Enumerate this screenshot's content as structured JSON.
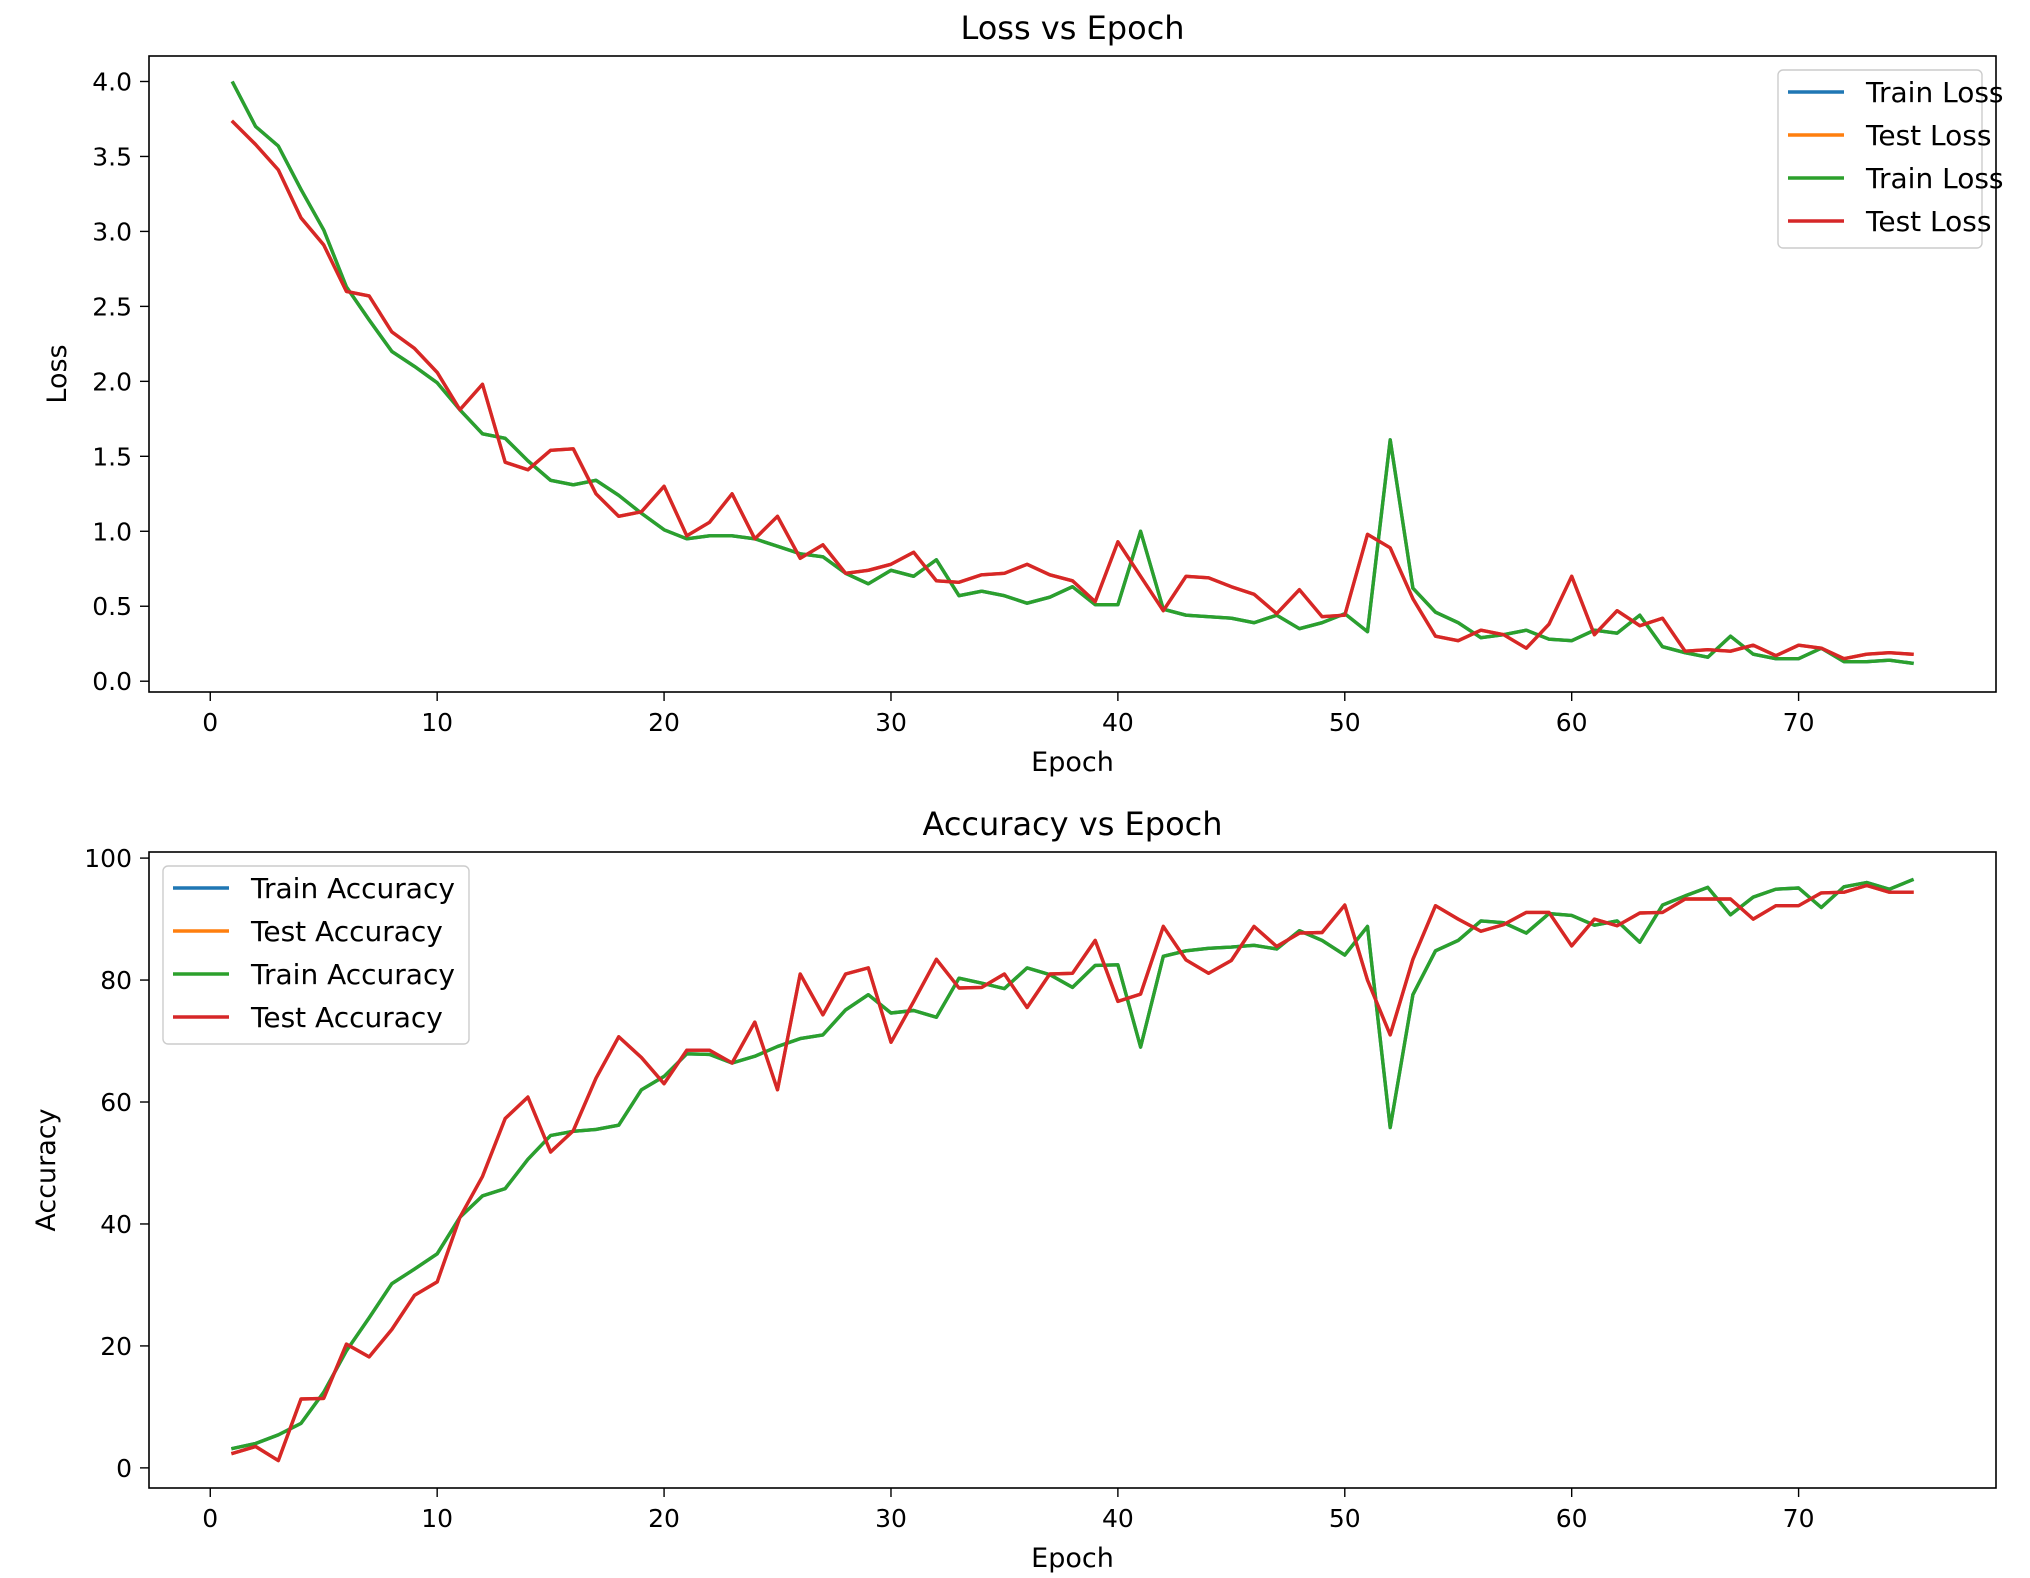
{
  "chart_data": [
    {
      "type": "line",
      "title": "Loss vs Epoch",
      "xlabel": "Epoch",
      "ylabel": "Loss",
      "xlim": [
        -2.7,
        78.7
      ],
      "ylim": [
        -0.072,
        4.17
      ],
      "xticks": [
        0,
        10,
        20,
        30,
        40,
        50,
        60,
        70
      ],
      "yticks": [
        0.0,
        0.5,
        1.0,
        1.5,
        2.0,
        2.5,
        3.0,
        3.5,
        4.0
      ],
      "ytick_labels": [
        "0.0",
        "0.5",
        "1.0",
        "1.5",
        "2.0",
        "2.5",
        "3.0",
        "3.5",
        "4.0"
      ],
      "grid": false,
      "legend_position": "upper right",
      "x": [
        1,
        2,
        3,
        4,
        5,
        6,
        7,
        8,
        9,
        10,
        11,
        12,
        13,
        14,
        15,
        16,
        17,
        18,
        19,
        20,
        21,
        22,
        23,
        24,
        25,
        26,
        27,
        28,
        29,
        30,
        31,
        32,
        33,
        34,
        35,
        36,
        37,
        38,
        39,
        40,
        41,
        42,
        43,
        44,
        45,
        46,
        47,
        48,
        49,
        50,
        51,
        52,
        53,
        54,
        55,
        56,
        57,
        58,
        59,
        60,
        61,
        62,
        63,
        64,
        65,
        66,
        67,
        68,
        69,
        70,
        71,
        72,
        73,
        74,
        75
      ],
      "series": [
        {
          "name": "Train Loss",
          "color": "#1f77b4",
          "values": [
            3.99,
            3.7,
            3.57,
            3.28,
            3.01,
            2.63,
            2.41,
            2.2,
            2.1,
            1.99,
            1.81,
            1.65,
            1.62,
            1.47,
            1.34,
            1.31,
            1.34,
            1.24,
            1.12,
            1.01,
            0.95,
            0.97,
            0.97,
            0.95,
            0.9,
            0.85,
            0.83,
            0.72,
            0.65,
            0.74,
            0.7,
            0.81,
            0.57,
            0.6,
            0.57,
            0.52,
            0.56,
            0.63,
            0.51,
            0.51,
            1.0,
            0.48,
            0.44,
            0.43,
            0.42,
            0.39,
            0.44,
            0.35,
            0.39,
            0.45,
            0.33,
            1.61,
            0.62,
            0.46,
            0.39,
            0.29,
            0.31,
            0.34,
            0.28,
            0.27,
            0.34,
            0.32,
            0.44,
            0.23,
            0.19,
            0.16,
            0.3,
            0.18,
            0.15,
            0.15,
            0.22,
            0.13,
            0.13,
            0.14,
            0.12
          ]
        },
        {
          "name": "Test Loss",
          "color": "#ff7f0e",
          "values": [
            3.73,
            3.58,
            3.41,
            3.09,
            2.91,
            2.6,
            2.57,
            2.33,
            2.22,
            2.06,
            1.81,
            1.98,
            1.46,
            1.41,
            1.54,
            1.55,
            1.25,
            1.1,
            1.13,
            1.3,
            0.97,
            1.06,
            1.25,
            0.95,
            1.1,
            0.82,
            0.91,
            0.72,
            0.74,
            0.78,
            0.86,
            0.67,
            0.66,
            0.71,
            0.72,
            0.78,
            0.71,
            0.67,
            0.53,
            0.93,
            0.7,
            0.47,
            0.7,
            0.69,
            0.63,
            0.58,
            0.45,
            0.61,
            0.43,
            0.44,
            0.98,
            0.89,
            0.55,
            0.3,
            0.27,
            0.34,
            0.31,
            0.22,
            0.38,
            0.7,
            0.31,
            0.47,
            0.37,
            0.42,
            0.2,
            0.21,
            0.2,
            0.24,
            0.17,
            0.24,
            0.22,
            0.15,
            0.18,
            0.19,
            0.18
          ]
        },
        {
          "name": "Train Loss",
          "color": "#2ca02c",
          "values": [
            3.99,
            3.7,
            3.57,
            3.28,
            3.01,
            2.63,
            2.41,
            2.2,
            2.1,
            1.99,
            1.81,
            1.65,
            1.62,
            1.47,
            1.34,
            1.31,
            1.34,
            1.24,
            1.12,
            1.01,
            0.95,
            0.97,
            0.97,
            0.95,
            0.9,
            0.85,
            0.83,
            0.72,
            0.65,
            0.74,
            0.7,
            0.81,
            0.57,
            0.6,
            0.57,
            0.52,
            0.56,
            0.63,
            0.51,
            0.51,
            1.0,
            0.48,
            0.44,
            0.43,
            0.42,
            0.39,
            0.44,
            0.35,
            0.39,
            0.45,
            0.33,
            1.61,
            0.62,
            0.46,
            0.39,
            0.29,
            0.31,
            0.34,
            0.28,
            0.27,
            0.34,
            0.32,
            0.44,
            0.23,
            0.19,
            0.16,
            0.3,
            0.18,
            0.15,
            0.15,
            0.22,
            0.13,
            0.13,
            0.14,
            0.12
          ]
        },
        {
          "name": "Test Loss",
          "color": "#d62728",
          "values": [
            3.73,
            3.58,
            3.41,
            3.09,
            2.91,
            2.6,
            2.57,
            2.33,
            2.22,
            2.06,
            1.81,
            1.98,
            1.46,
            1.41,
            1.54,
            1.55,
            1.25,
            1.1,
            1.13,
            1.3,
            0.97,
            1.06,
            1.25,
            0.95,
            1.1,
            0.82,
            0.91,
            0.72,
            0.74,
            0.78,
            0.86,
            0.67,
            0.66,
            0.71,
            0.72,
            0.78,
            0.71,
            0.67,
            0.53,
            0.93,
            0.7,
            0.47,
            0.7,
            0.69,
            0.63,
            0.58,
            0.45,
            0.61,
            0.43,
            0.44,
            0.98,
            0.89,
            0.55,
            0.3,
            0.27,
            0.34,
            0.31,
            0.22,
            0.38,
            0.7,
            0.31,
            0.47,
            0.37,
            0.42,
            0.2,
            0.21,
            0.2,
            0.24,
            0.17,
            0.24,
            0.22,
            0.15,
            0.18,
            0.19,
            0.18
          ]
        }
      ]
    },
    {
      "type": "line",
      "title": "Accuracy vs Epoch",
      "xlabel": "Epoch",
      "ylabel": "Accuracy",
      "xlim": [
        -2.7,
        78.7
      ],
      "ylim": [
        -3.3,
        101.0
      ],
      "xticks": [
        0,
        10,
        20,
        30,
        40,
        50,
        60,
        70
      ],
      "yticks": [
        0,
        20,
        40,
        60,
        80,
        100
      ],
      "ytick_labels": [
        "0",
        "20",
        "40",
        "60",
        "80",
        "100"
      ],
      "grid": false,
      "legend_position": "upper left",
      "x": [
        1,
        2,
        3,
        4,
        5,
        6,
        7,
        8,
        9,
        10,
        11,
        12,
        13,
        14,
        15,
        16,
        17,
        18,
        19,
        20,
        21,
        22,
        23,
        24,
        25,
        26,
        27,
        28,
        29,
        30,
        31,
        32,
        33,
        34,
        35,
        36,
        37,
        38,
        39,
        40,
        41,
        42,
        43,
        44,
        45,
        46,
        47,
        48,
        49,
        50,
        51,
        52,
        53,
        54,
        55,
        56,
        57,
        58,
        59,
        60,
        61,
        62,
        63,
        64,
        65,
        66,
        67,
        68,
        69,
        70,
        71,
        72,
        73,
        74,
        75
      ],
      "series": [
        {
          "name": "Train Accuracy",
          "color": "#1f77b4",
          "values": [
            3.2,
            4.0,
            5.4,
            7.3,
            12.4,
            19.2,
            24.6,
            30.2,
            32.6,
            35.1,
            41.1,
            44.6,
            45.8,
            50.6,
            54.5,
            55.2,
            55.5,
            56.2,
            62.0,
            64.2,
            67.9,
            67.8,
            66.4,
            67.5,
            69.1,
            70.4,
            71.0,
            75.1,
            77.6,
            74.6,
            75.0,
            73.9,
            80.3,
            79.5,
            78.6,
            82.0,
            80.9,
            78.8,
            82.4,
            82.5,
            69.0,
            83.9,
            84.8,
            85.2,
            85.4,
            85.7,
            85.1,
            88.1,
            86.5,
            84.1,
            88.8,
            55.8,
            77.6,
            84.8,
            86.5,
            89.7,
            89.4,
            87.7,
            90.9,
            90.6,
            89.0,
            89.7,
            86.2,
            92.3,
            93.8,
            95.2,
            90.7,
            93.6,
            94.9,
            95.1,
            91.9,
            95.3,
            96.0,
            94.9,
            96.4
          ]
        },
        {
          "name": "Test Accuracy",
          "color": "#ff7f0e",
          "values": [
            2.4,
            3.5,
            1.2,
            11.3,
            11.4,
            20.3,
            18.2,
            22.7,
            28.3,
            30.5,
            41.1,
            47.8,
            57.3,
            60.8,
            51.8,
            55.3,
            63.9,
            70.7,
            67.3,
            63.0,
            68.5,
            68.5,
            66.4,
            73.1,
            62.0,
            81.0,
            74.3,
            81.0,
            82.0,
            69.8,
            76.5,
            83.4,
            78.7,
            78.8,
            81.0,
            75.5,
            81.0,
            81.1,
            86.5,
            76.5,
            77.7,
            88.8,
            83.3,
            81.1,
            83.2,
            88.8,
            85.5,
            87.7,
            87.8,
            92.3,
            80.0,
            71.0,
            83.4,
            92.2,
            90.0,
            88.0,
            89.1,
            91.1,
            91.1,
            85.6,
            90.0,
            88.9,
            91.0,
            91.1,
            93.3,
            93.3,
            93.3,
            90.0,
            92.2,
            92.2,
            94.3,
            94.4,
            95.5,
            94.4,
            94.4
          ]
        },
        {
          "name": "Train Accuracy",
          "color": "#2ca02c",
          "values": [
            3.2,
            4.0,
            5.4,
            7.3,
            12.4,
            19.2,
            24.6,
            30.2,
            32.6,
            35.1,
            41.1,
            44.6,
            45.8,
            50.6,
            54.5,
            55.2,
            55.5,
            56.2,
            62.0,
            64.2,
            67.9,
            67.8,
            66.4,
            67.5,
            69.1,
            70.4,
            71.0,
            75.1,
            77.6,
            74.6,
            75.0,
            73.9,
            80.3,
            79.5,
            78.6,
            82.0,
            80.9,
            78.8,
            82.4,
            82.5,
            69.0,
            83.9,
            84.8,
            85.2,
            85.4,
            85.7,
            85.1,
            88.1,
            86.5,
            84.1,
            88.8,
            55.8,
            77.6,
            84.8,
            86.5,
            89.7,
            89.4,
            87.7,
            90.9,
            90.6,
            89.0,
            89.7,
            86.2,
            92.3,
            93.8,
            95.2,
            90.7,
            93.6,
            94.9,
            95.1,
            91.9,
            95.3,
            96.0,
            94.9,
            96.4
          ]
        },
        {
          "name": "Test Accuracy",
          "color": "#d62728",
          "values": [
            2.4,
            3.5,
            1.2,
            11.3,
            11.4,
            20.3,
            18.2,
            22.7,
            28.3,
            30.5,
            41.1,
            47.8,
            57.3,
            60.8,
            51.8,
            55.3,
            63.9,
            70.7,
            67.3,
            63.0,
            68.5,
            68.5,
            66.4,
            73.1,
            62.0,
            81.0,
            74.3,
            81.0,
            82.0,
            69.8,
            76.5,
            83.4,
            78.7,
            78.8,
            81.0,
            75.5,
            81.0,
            81.1,
            86.5,
            76.5,
            77.7,
            88.8,
            83.3,
            81.1,
            83.2,
            88.8,
            85.5,
            87.7,
            87.8,
            92.3,
            80.0,
            71.0,
            83.4,
            92.2,
            90.0,
            88.0,
            89.1,
            91.1,
            91.1,
            85.6,
            90.0,
            88.9,
            91.0,
            91.1,
            93.3,
            93.3,
            93.3,
            90.0,
            92.2,
            92.2,
            94.3,
            94.4,
            95.5,
            94.4,
            94.4
          ]
        }
      ]
    }
  ]
}
